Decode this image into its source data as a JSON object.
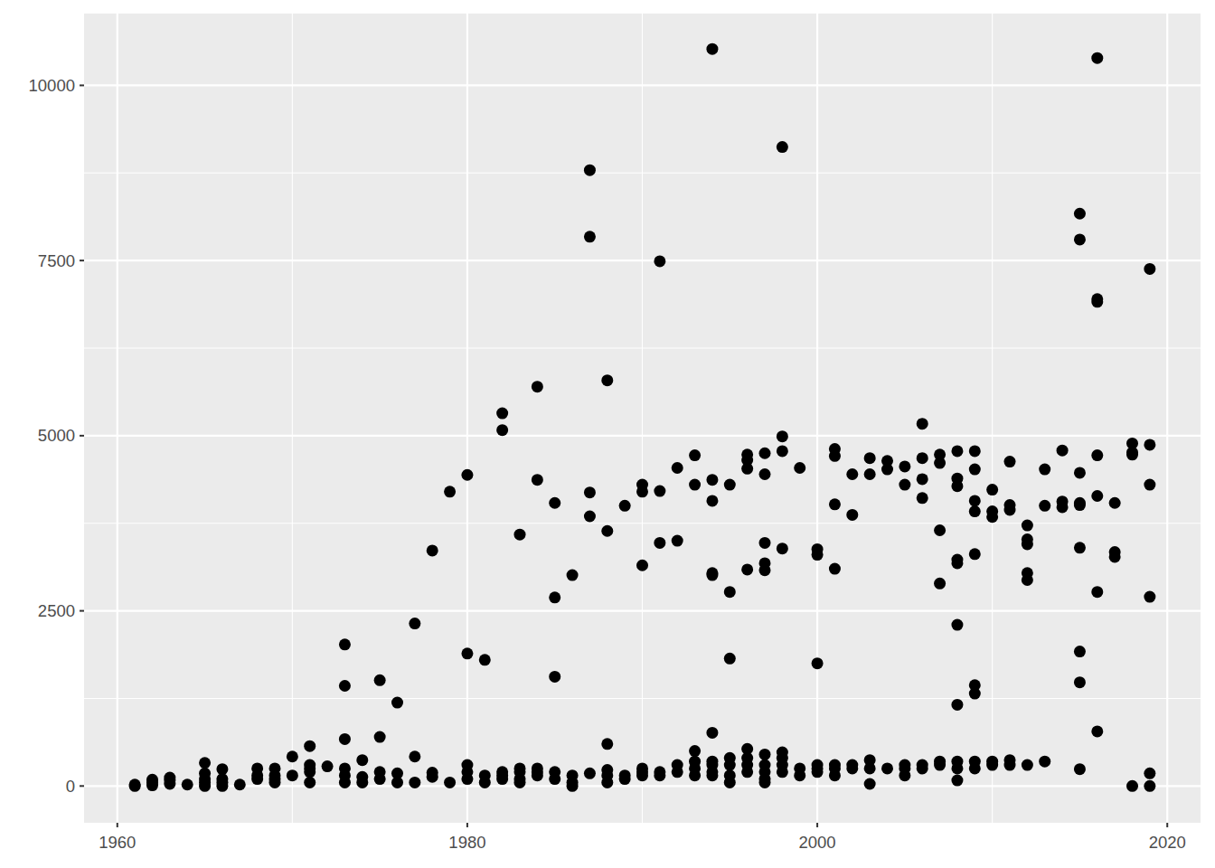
{
  "chart_data": {
    "type": "scatter",
    "x": [
      1961,
      1961,
      1962,
      1962,
      1962,
      1963,
      1963,
      1963,
      1964,
      1965,
      1965,
      1965,
      1965,
      1965,
      1966,
      1966,
      1966,
      1966,
      1967,
      1968,
      1968,
      1968,
      1969,
      1969,
      1969,
      1969,
      1970,
      1970,
      1971,
      1971,
      1971,
      1971,
      1971,
      1972,
      1973,
      1973,
      1973,
      1973,
      1973,
      1973,
      1974,
      1974,
      1974,
      1975,
      1975,
      1975,
      1975,
      1976,
      1976,
      1976,
      1977,
      1977,
      1977,
      1978,
      1978,
      1978,
      1979,
      1979,
      1980,
      1980,
      1980,
      1980,
      1980,
      1981,
      1981,
      1981,
      1982,
      1982,
      1982,
      1982,
      1982,
      1983,
      1983,
      1983,
      1983,
      1983,
      1984,
      1984,
      1984,
      1984,
      1984,
      1985,
      1985,
      1985,
      1985,
      1985,
      1986,
      1986,
      1986,
      1986,
      1987,
      1987,
      1987,
      1987,
      1987,
      1988,
      1988,
      1988,
      1988,
      1988,
      1988,
      1989,
      1989,
      1989,
      1990,
      1990,
      1990,
      1990,
      1990,
      1990,
      1991,
      1991,
      1991,
      1991,
      1991,
      1992,
      1992,
      1992,
      1992,
      1993,
      1993,
      1993,
      1993,
      1993,
      1993,
      1994,
      1994,
      1994,
      1994,
      1994,
      1994,
      1994,
      1994,
      1994,
      1994,
      1995,
      1995,
      1995,
      1995,
      1995,
      1995,
      1995,
      1996,
      1996,
      1996,
      1996,
      1996,
      1996,
      1996,
      1996,
      1997,
      1997,
      1997,
      1997,
      1997,
      1997,
      1997,
      1997,
      1997,
      1997,
      1998,
      1998,
      1998,
      1998,
      1998,
      1998,
      1998,
      1998,
      1999,
      1999,
      1999,
      2000,
      2000,
      2000,
      2000,
      2000,
      2000,
      2001,
      2001,
      2001,
      2001,
      2001,
      2001,
      2001,
      2002,
      2002,
      2002,
      2002,
      2003,
      2003,
      2003,
      2003,
      2003,
      2004,
      2004,
      2004,
      2005,
      2005,
      2005,
      2005,
      2005,
      2006,
      2006,
      2006,
      2006,
      2006,
      2006,
      2007,
      2007,
      2007,
      2007,
      2007,
      2007,
      2008,
      2008,
      2008,
      2008,
      2008,
      2008,
      2008,
      2008,
      2008,
      2008,
      2009,
      2009,
      2009,
      2009,
      2009,
      2009,
      2009,
      2009,
      2009,
      2010,
      2010,
      2010,
      2010,
      2010,
      2011,
      2011,
      2011,
      2011,
      2011,
      2012,
      2012,
      2012,
      2012,
      2012,
      2012,
      2013,
      2013,
      2013,
      2014,
      2014,
      2014,
      2015,
      2015,
      2015,
      2015,
      2015,
      2015,
      2015,
      2015,
      2015,
      2016,
      2016,
      2016,
      2016,
      2016,
      2016,
      2016,
      2017,
      2017,
      2017,
      2018,
      2018,
      2018,
      2018,
      2019,
      2019,
      2019,
      2019,
      2019,
      2019
    ],
    "values": [
      0,
      20,
      10,
      50,
      90,
      30,
      80,
      120,
      20,
      0,
      50,
      100,
      180,
      330,
      0,
      50,
      100,
      240,
      20,
      100,
      150,
      250,
      50,
      100,
      150,
      250,
      150,
      420,
      50,
      200,
      250,
      300,
      570,
      280,
      50,
      150,
      250,
      670,
      1430,
      2020,
      50,
      130,
      370,
      100,
      200,
      700,
      1510,
      50,
      180,
      1190,
      50,
      420,
      2320,
      130,
      190,
      3360,
      50,
      4200,
      100,
      200,
      300,
      1890,
      4440,
      50,
      150,
      1800,
      100,
      150,
      200,
      5080,
      5320,
      50,
      100,
      200,
      250,
      3590,
      150,
      200,
      250,
      4370,
      5700,
      100,
      200,
      1560,
      2690,
      4040,
      0,
      50,
      150,
      3010,
      180,
      3850,
      4190,
      7840,
      8790,
      50,
      150,
      230,
      600,
      3640,
      5790,
      100,
      150,
      4000,
      150,
      200,
      250,
      3150,
      4200,
      4300,
      150,
      200,
      3470,
      4210,
      7490,
      200,
      300,
      3500,
      4540,
      150,
      250,
      350,
      500,
      4300,
      4720,
      150,
      200,
      300,
      350,
      760,
      3010,
      3040,
      4070,
      4370,
      10520,
      50,
      150,
      300,
      400,
      1820,
      2770,
      4300,
      200,
      300,
      400,
      530,
      3090,
      4530,
      4650,
      4730,
      50,
      100,
      200,
      300,
      450,
      3080,
      3180,
      3470,
      4450,
      4750,
      200,
      300,
      400,
      480,
      3390,
      4780,
      4990,
      9120,
      150,
      250,
      4540,
      200,
      250,
      300,
      1750,
      3300,
      3380,
      150,
      250,
      300,
      3100,
      4020,
      4710,
      4810,
      250,
      300,
      3870,
      4450,
      30,
      250,
      370,
      4450,
      4680,
      250,
      4520,
      4640,
      150,
      250,
      300,
      4300,
      4560,
      250,
      300,
      4110,
      4380,
      4680,
      5170,
      300,
      350,
      2890,
      3650,
      4610,
      4730,
      80,
      250,
      350,
      1160,
      2300,
      3180,
      3230,
      4280,
      4390,
      4780,
      250,
      350,
      1320,
      1440,
      3310,
      3920,
      4070,
      4520,
      4780,
      300,
      350,
      3840,
      3920,
      4230,
      300,
      370,
      3940,
      4010,
      4630,
      300,
      2940,
      3040,
      3450,
      3520,
      3720,
      350,
      4000,
      4520,
      3980,
      4060,
      4790,
      240,
      1480,
      1920,
      3400,
      4010,
      4040,
      4470,
      7800,
      8170,
      780,
      2770,
      4140,
      4720,
      6910,
      6950,
      10390,
      3270,
      3340,
      4040,
      0,
      4730,
      4760,
      4890,
      0,
      180,
      2700,
      4300,
      4870,
      7380
    ],
    "color": "#000000",
    "xlim": [
      1958.1,
      2021.9
    ],
    "ylim": [
      -525,
      11025
    ],
    "xticks": [
      1960,
      1980,
      2000,
      2020
    ],
    "yticks": [
      0,
      2500,
      5000,
      7500,
      10000
    ],
    "grid": true
  }
}
